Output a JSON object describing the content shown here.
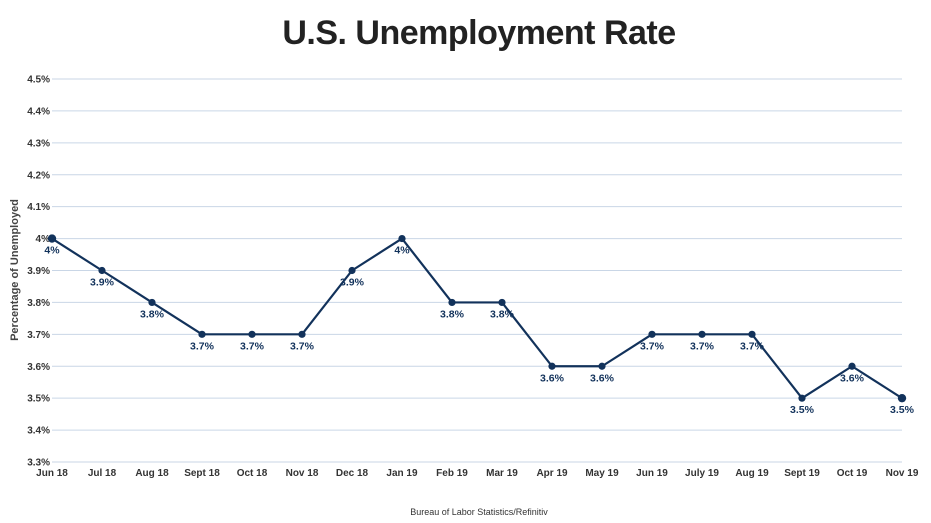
{
  "source": "Bureau of Labor Statistics/Refinitiv",
  "colors": {
    "line": "#12325b",
    "grid": "#c9d6e6",
    "text": "#333333"
  },
  "chart_data": {
    "type": "line",
    "title": "U.S. Unemployment Rate",
    "xlabel": "",
    "ylabel": "Percentage of Unemployed",
    "ylim": [
      3.3,
      4.5
    ],
    "grid": true,
    "y_ticks": [
      "3.3%",
      "3.4%",
      "3.5%",
      "3.6%",
      "3.7%",
      "3.8%",
      "3.9%",
      "4%",
      "4.1%",
      "4.2%",
      "4.3%",
      "4.4%",
      "4.5%"
    ],
    "y_tick_values": [
      3.3,
      3.4,
      3.5,
      3.6,
      3.7,
      3.8,
      3.9,
      4.0,
      4.1,
      4.2,
      4.3,
      4.4,
      4.5
    ],
    "categories": [
      "Jun 18",
      "Jul 18",
      "Aug 18",
      "Sept 18",
      "Oct 18",
      "Nov 18",
      "Dec 18",
      "Jan 19",
      "Feb 19",
      "Mar 19",
      "Apr 19",
      "May 19",
      "Jun 19",
      "July 19",
      "Aug 19",
      "Sept 19",
      "Oct 19",
      "Nov 19"
    ],
    "series": [
      {
        "values": [
          4.0,
          3.9,
          3.8,
          3.7,
          3.7,
          3.7,
          3.9,
          4.0,
          3.8,
          3.8,
          3.6,
          3.6,
          3.7,
          3.7,
          3.7,
          3.5,
          3.6,
          3.5
        ],
        "data_labels": [
          "4%",
          "3.9%",
          "3.8%",
          "3.7%",
          "3.7%",
          "3.7%",
          "3.9%",
          "4%",
          "3.8%",
          "3.8%",
          "3.6%",
          "3.6%",
          "3.7%",
          "3.7%",
          "3.7%",
          "3.5%",
          "3.6%",
          "3.5%"
        ]
      }
    ]
  }
}
